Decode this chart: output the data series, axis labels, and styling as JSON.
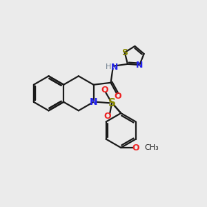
{
  "bg_color": "#ebebeb",
  "bond_color": "#1a1a1a",
  "N_color": "#2020ee",
  "O_color": "#ee2020",
  "S_color": "#888800",
  "H_color": "#708090",
  "line_width": 1.6,
  "font_size": 9,
  "fig_size": [
    3.0,
    3.0
  ],
  "dpi": 100,
  "xlim": [
    0,
    10
  ],
  "ylim": [
    0,
    10
  ]
}
